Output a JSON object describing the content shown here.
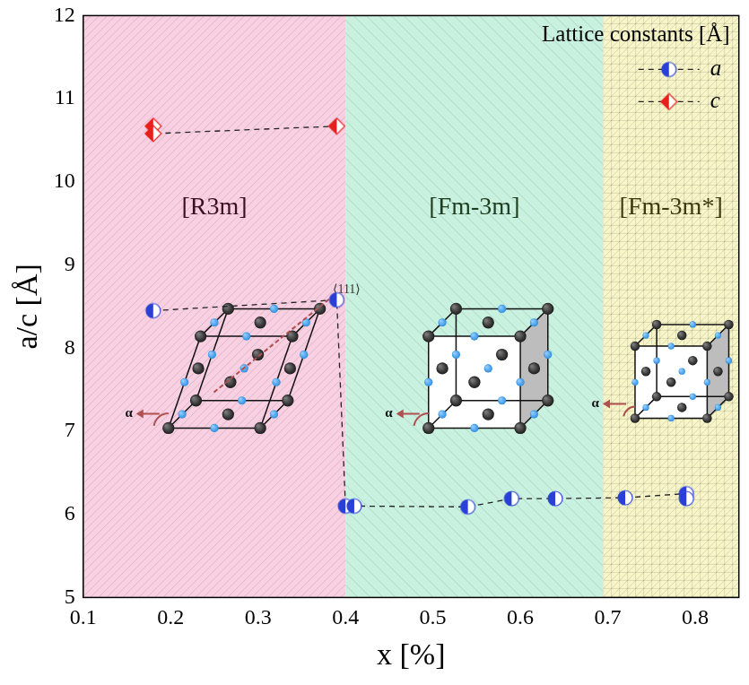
{
  "chart_data": {
    "type": "scatter",
    "x_label": "x [%]",
    "y_label": "a/c [Å]",
    "xlim": [
      0.1,
      0.85
    ],
    "xticks": [
      0.1,
      0.2,
      0.3,
      0.4,
      0.5,
      0.6,
      0.7,
      0.8
    ],
    "ylim": [
      5,
      12
    ],
    "yticks": [
      5,
      6,
      7,
      8,
      9,
      10,
      11,
      12
    ],
    "grid": false,
    "legend": "upper right",
    "legend_title": "Lattice constants [Å]",
    "series": [
      {
        "name": "a",
        "color": "#2a3fd6",
        "marker": "circle",
        "line_style": "dashed",
        "x": [
          0.18,
          0.39,
          0.4,
          0.41,
          0.54,
          0.59,
          0.64,
          0.72,
          0.79,
          0.79
        ],
        "values": [
          8.45,
          8.58,
          6.1,
          6.1,
          6.09,
          6.19,
          6.19,
          6.2,
          6.25,
          6.19
        ]
      },
      {
        "name": "c",
        "color": "#e8201c",
        "marker": "diamond",
        "line_style": "dashed",
        "x": [
          0.18,
          0.18,
          0.39
        ],
        "values": [
          10.67,
          10.58,
          10.67
        ]
      }
    ],
    "regions": [
      {
        "label": "[R3m]",
        "from": 0.1,
        "to": 0.4,
        "color": "#f9d0e2"
      },
      {
        "label": "[Fm-3m]",
        "from": 0.4,
        "to": 0.695,
        "color": "#c8f1df"
      },
      {
        "label": "[Fm-3m*]",
        "from": 0.695,
        "to": 0.85,
        "color": "#f8f6c8"
      }
    ],
    "insets": [
      {
        "labels": [
          "α",
          "⟨111⟩"
        ]
      },
      {
        "labels": [
          "α"
        ]
      },
      {
        "labels": [
          "α"
        ]
      }
    ]
  }
}
